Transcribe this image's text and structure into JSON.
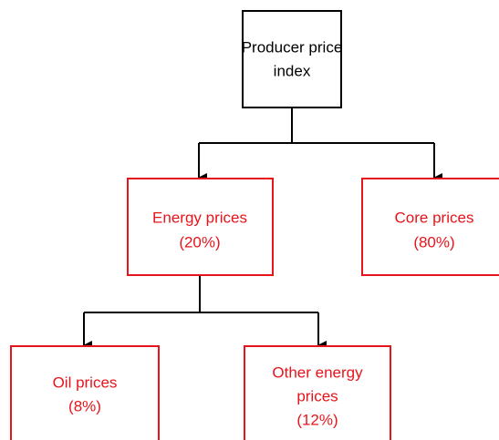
{
  "nodes": [
    {
      "lines": [
        "Producer price",
        "index"
      ]
    },
    {
      "lines": [
        "Energy prices",
        "(20%)"
      ]
    },
    {
      "lines": [
        "Core prices",
        "(80%)"
      ]
    },
    {
      "lines": [
        "Oil prices",
        "(8%)"
      ]
    },
    {
      "lines": [
        "Other energy",
        "prices",
        "(12%)"
      ]
    }
  ]
}
